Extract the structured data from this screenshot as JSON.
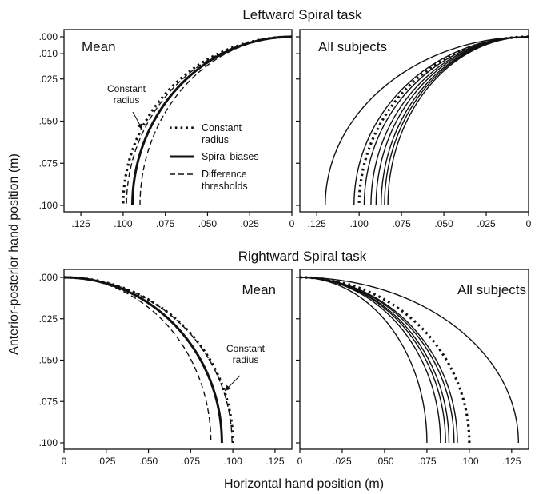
{
  "figure": {
    "section_titles": [
      "Leftward Spiral task",
      "Rightward Spiral task"
    ],
    "ylabel": "Anterior-posterior hand position (m)",
    "xlabel": "Horizontal hand position (m)"
  },
  "chart_data": [
    {
      "type": "line",
      "panel_label": "Mean",
      "ylim": [
        0.0,
        0.1
      ],
      "xlim": [
        0.135,
        0.0
      ],
      "x_tick_labels": [
        ".125",
        ".100",
        ".075",
        ".050",
        ".025",
        "0"
      ],
      "x_tick_values": [
        0.125,
        0.1,
        0.075,
        0.05,
        0.025,
        0.0
      ],
      "y_tick_labels": [
        ".000",
        ".010",
        ".025",
        ".050",
        ".075",
        ".100"
      ],
      "y_tick_values": [
        0.0,
        0.01,
        0.025,
        0.05,
        0.075,
        0.1
      ],
      "annotation": {
        "lines": [
          "Constant",
          "radius"
        ]
      },
      "legend": {
        "placement": "bottom-right",
        "entries": [
          {
            "lines": [
              "Constant",
              "radius"
            ],
            "style": "dotted"
          },
          {
            "lines": [
              "Spiral biases"
            ],
            "style": "solid"
          },
          {
            "lines": [
              "Difference",
              "thresholds"
            ],
            "style": "dashed"
          }
        ]
      },
      "series": [
        {
          "style": "dotted",
          "center": [
            0.1,
            0.1
          ],
          "rx": 0.1,
          "ry": 0.1,
          "weight": "heavy"
        },
        {
          "style": "solid",
          "center": [
            0.1,
            0.1
          ],
          "rx": 0.0945,
          "ry": 0.1,
          "weight": "heavy"
        },
        {
          "style": "dashed",
          "center": [
            0.1,
            0.1
          ],
          "rx": 0.098,
          "ry": 0.1,
          "weight": "light"
        },
        {
          "style": "dashed",
          "center": [
            0.1,
            0.1
          ],
          "rx": 0.09,
          "ry": 0.1,
          "weight": "light"
        }
      ]
    },
    {
      "type": "line",
      "panel_label": "All subjects",
      "ylim": [
        0.0,
        0.1
      ],
      "xlim": [
        0.135,
        0.0
      ],
      "x_tick_labels": [
        ".125",
        ".100",
        ".075",
        ".050",
        ".025",
        "0"
      ],
      "x_tick_values": [
        0.125,
        0.1,
        0.075,
        0.05,
        0.025,
        0.0
      ],
      "y_tick_labels": [
        ".000",
        ".010",
        ".025",
        ".050",
        ".075",
        ".100"
      ],
      "y_tick_values": [
        0.0,
        0.01,
        0.025,
        0.05,
        0.075,
        0.1
      ],
      "series": [
        {
          "style": "dotted",
          "center": [
            0.1,
            0.1
          ],
          "rx": 0.1,
          "ry": 0.1,
          "weight": "heavy"
        },
        {
          "style": "solid",
          "center": [
            0.12,
            0.1
          ],
          "rx": 0.12,
          "ry": 0.1,
          "weight": "light"
        },
        {
          "style": "solid",
          "center": [
            0.103,
            0.1
          ],
          "rx": 0.103,
          "ry": 0.1,
          "weight": "light"
        },
        {
          "style": "solid",
          "center": [
            0.097,
            0.1
          ],
          "rx": 0.097,
          "ry": 0.1,
          "weight": "light"
        },
        {
          "style": "solid",
          "center": [
            0.093,
            0.1
          ],
          "rx": 0.093,
          "ry": 0.1,
          "weight": "light"
        },
        {
          "style": "solid",
          "center": [
            0.09,
            0.1
          ],
          "rx": 0.09,
          "ry": 0.1,
          "weight": "light"
        },
        {
          "style": "solid",
          "center": [
            0.087,
            0.1
          ],
          "rx": 0.087,
          "ry": 0.1,
          "weight": "light"
        },
        {
          "style": "solid",
          "center": [
            0.085,
            0.1
          ],
          "rx": 0.085,
          "ry": 0.1,
          "weight": "light"
        },
        {
          "style": "solid",
          "center": [
            0.083,
            0.1
          ],
          "rx": 0.083,
          "ry": 0.1,
          "weight": "light"
        }
      ]
    },
    {
      "type": "line",
      "panel_label": "Mean",
      "ylim": [
        0.0,
        0.1
      ],
      "xlim": [
        0.0,
        0.135
      ],
      "x_tick_labels": [
        "0",
        ".025",
        ".050",
        ".075",
        ".100",
        ".125"
      ],
      "x_tick_values": [
        0.0,
        0.025,
        0.05,
        0.075,
        0.1,
        0.125
      ],
      "y_tick_labels": [
        ".000",
        ".025",
        ".050",
        ".075",
        ".100"
      ],
      "y_tick_values": [
        0.0,
        0.025,
        0.05,
        0.075,
        0.1
      ],
      "annotation": {
        "lines": [
          "Constant",
          "radius"
        ]
      },
      "series": [
        {
          "style": "dotted",
          "center": [
            0.0,
            0.1
          ],
          "rx": 0.1,
          "ry": 0.1,
          "weight": "heavy"
        },
        {
          "style": "solid",
          "center": [
            0.0,
            0.1
          ],
          "rx": 0.0935,
          "ry": 0.1,
          "weight": "heavy"
        },
        {
          "style": "dashed",
          "center": [
            0.0,
            0.1
          ],
          "rx": 0.0995,
          "ry": 0.1,
          "weight": "light"
        },
        {
          "style": "dashed",
          "center": [
            0.0,
            0.1
          ],
          "rx": 0.087,
          "ry": 0.1,
          "weight": "light"
        }
      ]
    },
    {
      "type": "line",
      "panel_label": "All subjects",
      "ylim": [
        0.0,
        0.1
      ],
      "xlim": [
        0.0,
        0.135
      ],
      "x_tick_labels": [
        "0",
        ".025",
        ".050",
        ".075",
        ".100",
        ".125"
      ],
      "x_tick_values": [
        0.0,
        0.025,
        0.05,
        0.075,
        0.1,
        0.125
      ],
      "y_tick_labels": [
        ".000",
        ".025",
        ".050",
        ".075",
        ".100"
      ],
      "y_tick_values": [
        0.0,
        0.025,
        0.05,
        0.075,
        0.1
      ],
      "series": [
        {
          "style": "dotted",
          "center": [
            0.0,
            0.1
          ],
          "rx": 0.1,
          "ry": 0.1,
          "weight": "heavy"
        },
        {
          "style": "solid",
          "center": [
            0.0,
            0.1
          ],
          "rx": 0.129,
          "ry": 0.1,
          "weight": "light"
        },
        {
          "style": "solid",
          "center": [
            0.0,
            0.1
          ],
          "rx": 0.075,
          "ry": 0.1,
          "weight": "light"
        },
        {
          "style": "solid",
          "center": [
            0.0,
            0.1
          ],
          "rx": 0.083,
          "ry": 0.1,
          "weight": "light"
        },
        {
          "style": "solid",
          "center": [
            0.0,
            0.1
          ],
          "rx": 0.086,
          "ry": 0.1,
          "weight": "light"
        },
        {
          "style": "solid",
          "center": [
            0.0,
            0.1
          ],
          "rx": 0.088,
          "ry": 0.1,
          "weight": "light"
        },
        {
          "style": "solid",
          "center": [
            0.0,
            0.1
          ],
          "rx": 0.091,
          "ry": 0.1,
          "weight": "light"
        },
        {
          "style": "solid",
          "center": [
            0.0,
            0.1
          ],
          "rx": 0.093,
          "ry": 0.1,
          "weight": "light"
        }
      ]
    }
  ]
}
